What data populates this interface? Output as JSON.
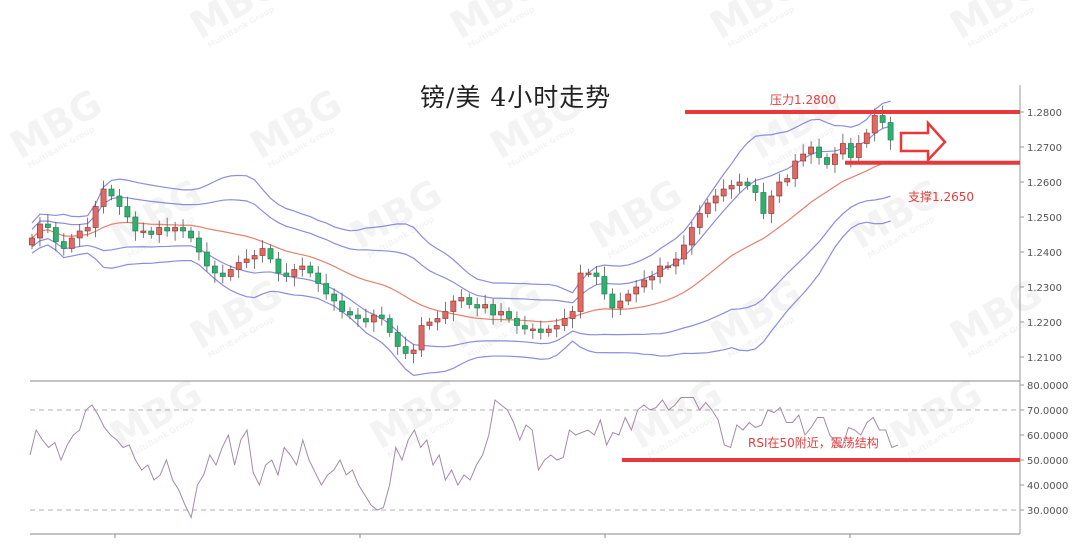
{
  "watermark": {
    "logo": "MBG",
    "sub": "MultiBank Group"
  },
  "chart_data": [
    {
      "type": "candlestick",
      "title": "镑/美 4小时走势",
      "ylim": [
        1.205,
        1.2835
      ],
      "yticks": [
        "1.2800",
        "1.2700",
        "1.2600",
        "1.2500",
        "1.2400",
        "1.2300",
        "1.2200",
        "1.2100"
      ],
      "indicators": [
        "Bollinger Bands",
        "Moving Average"
      ],
      "close": [
        1.244,
        1.248,
        1.247,
        1.243,
        1.241,
        1.244,
        1.246,
        1.247,
        1.253,
        1.258,
        1.256,
        1.253,
        1.25,
        1.246,
        1.246,
        1.245,
        1.247,
        1.246,
        1.247,
        1.246,
        1.244,
        1.24,
        1.236,
        1.234,
        1.233,
        1.235,
        1.237,
        1.238,
        1.239,
        1.241,
        1.238,
        1.234,
        1.233,
        1.235,
        1.236,
        1.234,
        1.231,
        1.228,
        1.226,
        1.223,
        1.222,
        1.221,
        1.22,
        1.222,
        1.221,
        1.217,
        1.213,
        1.211,
        1.212,
        1.219,
        1.22,
        1.221,
        1.223,
        1.226,
        1.227,
        1.225,
        1.224,
        1.225,
        1.222,
        1.223,
        1.221,
        1.219,
        1.218,
        1.218,
        1.217,
        1.218,
        1.219,
        1.221,
        1.223,
        1.234,
        1.234,
        1.233,
        1.228,
        1.224,
        1.226,
        1.228,
        1.23,
        1.232,
        1.233,
        1.236,
        1.236,
        1.238,
        1.242,
        1.247,
        1.251,
        1.254,
        1.256,
        1.258,
        1.259,
        1.26,
        1.259,
        1.257,
        1.251,
        1.256,
        1.26,
        1.261,
        1.266,
        1.268,
        1.27,
        1.267,
        1.265,
        1.268,
        1.271,
        1.267,
        1.271,
        1.274,
        1.279,
        1.277,
        1.272
      ],
      "annotations": [
        {
          "text": "压力1.2800",
          "level": 1.28
        },
        {
          "text": "支撑1.2650",
          "level": 1.265
        }
      ],
      "colors": {
        "up": "#e06a63",
        "down": "#2fb06f",
        "band": "#8c8ce0",
        "mid": "#e8806e",
        "annotation": "#e8383a"
      }
    },
    {
      "type": "line",
      "series_name": "RSI",
      "ylim": [
        25,
        82
      ],
      "yticks": [
        "80.0000",
        "70.0000",
        "60.0000",
        "50.0000",
        "40.0000",
        "30.0000"
      ],
      "reference_lines": [
        70,
        30
      ],
      "values": [
        52,
        62,
        58,
        55,
        57,
        50,
        56,
        60,
        62,
        70,
        72,
        68,
        63,
        60,
        58,
        55,
        56,
        50,
        46,
        48,
        42,
        44,
        50,
        42,
        38,
        32,
        27,
        40,
        44,
        52,
        48,
        55,
        60,
        48,
        58,
        62,
        45,
        40,
        48,
        50,
        44,
        55,
        52,
        48,
        58,
        50,
        45,
        40,
        44,
        46,
        50,
        44,
        46,
        40,
        36,
        32,
        30,
        31,
        40,
        55,
        50,
        58,
        62,
        55,
        58,
        48,
        52,
        42,
        46,
        40,
        44,
        42,
        48,
        52,
        60,
        74,
        72,
        70,
        65,
        58,
        64,
        62,
        46,
        50,
        52,
        50,
        51,
        62,
        60,
        61,
        62,
        60,
        66,
        56,
        61,
        60,
        67,
        62,
        70,
        72,
        70,
        71,
        74,
        70,
        72,
        75,
        75,
        75,
        70,
        73,
        70,
        66,
        56,
        55,
        64,
        62,
        65,
        63,
        64,
        70,
        69,
        71,
        65,
        65,
        68,
        60,
        63,
        67,
        67,
        60,
        57,
        55,
        63,
        62,
        60,
        65,
        67,
        62,
        62,
        55,
        56
      ],
      "annotation": {
        "text": "RSI在50附近，震荡结构",
        "level": 50
      }
    }
  ]
}
